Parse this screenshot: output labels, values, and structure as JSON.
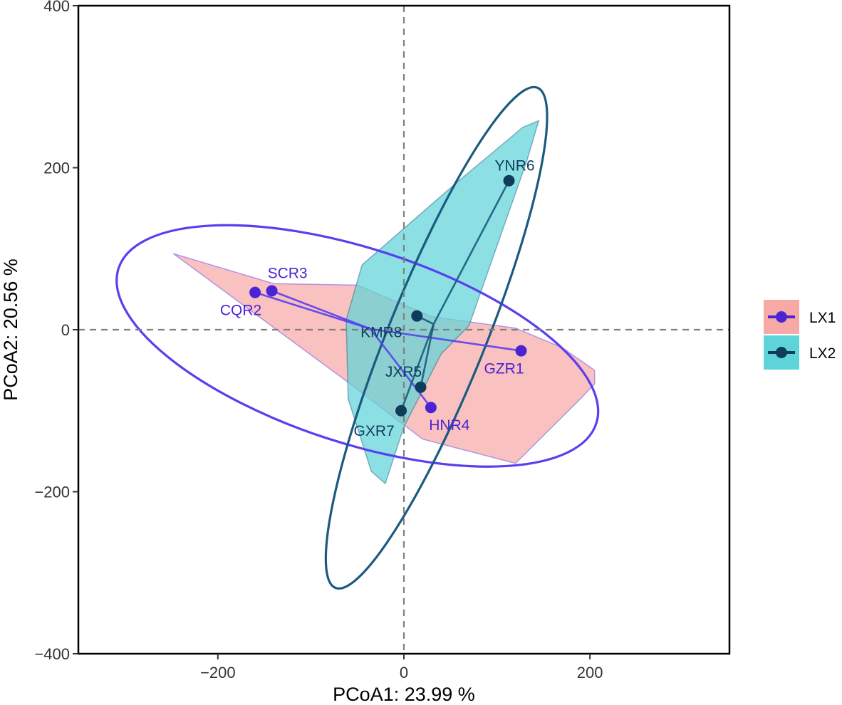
{
  "chart_data": {
    "type": "scatter",
    "title": "",
    "xlabel": "PCoA1:  23.99 %",
    "ylabel": "PCoA2:  20.56 %",
    "xlim": [
      -350,
      350
    ],
    "ylim": [
      -400,
      400
    ],
    "xticks": [
      -200,
      0,
      200
    ],
    "yticks": [
      -400,
      -200,
      0,
      200,
      400
    ],
    "xtick_labels": [
      "−200",
      "0",
      "200"
    ],
    "ytick_labels": [
      "−400",
      "−200",
      "0",
      "200",
      "400"
    ],
    "reference_lines": {
      "x": 0,
      "y": 0,
      "style": "dashed"
    },
    "series": [
      {
        "name": "LX1",
        "color": "#4a23d4",
        "ellipse_color": "#5a3ef0",
        "hull_fill": "#f7a9a6",
        "centroid": [
          -36,
          1
        ],
        "points": [
          {
            "label": "GZR1",
            "x": 126,
            "y": -26
          },
          {
            "label": "CQR2",
            "x": -160,
            "y": 46
          },
          {
            "label": "SCR3",
            "x": -142,
            "y": 48
          },
          {
            "label": "HNR4",
            "x": 29,
            "y": -96
          }
        ],
        "hull": [
          [
            -248,
            94
          ],
          [
            -140,
            57
          ],
          [
            -50,
            55
          ],
          [
            30,
            16
          ],
          [
            120,
            2
          ],
          [
            170,
            -22
          ],
          [
            205,
            -50
          ],
          [
            205,
            -67
          ],
          [
            190,
            -85
          ],
          [
            120,
            -165
          ],
          [
            20,
            -135
          ],
          [
            -60,
            -65
          ]
        ],
        "ellipse": {
          "cx": -50,
          "cy": -20,
          "rx": 270,
          "ry": 120,
          "rotation_deg": -18
        }
      },
      {
        "name": "LX2",
        "color": "#0e3d5c",
        "ellipse_color": "#1b5a80",
        "hull_fill": "#5fd4d8",
        "centroid": [
          32,
          7
        ],
        "points": [
          {
            "label": "JXR5",
            "x": 18,
            "y": -71
          },
          {
            "label": "YNR6",
            "x": 113,
            "y": 184
          },
          {
            "label": "GXR7",
            "x": -3,
            "y": -100
          },
          {
            "label": "KMR8",
            "x": 14,
            "y": 17
          }
        ],
        "hull": [
          [
            145,
            258
          ],
          [
            132,
            208
          ],
          [
            70,
            5
          ],
          [
            40,
            -30
          ],
          [
            0,
            -120
          ],
          [
            -20,
            -190
          ],
          [
            -35,
            -175
          ],
          [
            -60,
            -85
          ],
          [
            -62,
            12
          ],
          [
            -45,
            80
          ],
          [
            55,
            180
          ],
          [
            128,
            250
          ]
        ],
        "ellipse": {
          "cx": 35,
          "cy": -10,
          "rx": 290,
          "ry": 60,
          "rotation_deg": 68
        }
      }
    ],
    "legend": {
      "position": "right",
      "entries": [
        "LX1",
        "LX2"
      ]
    }
  }
}
